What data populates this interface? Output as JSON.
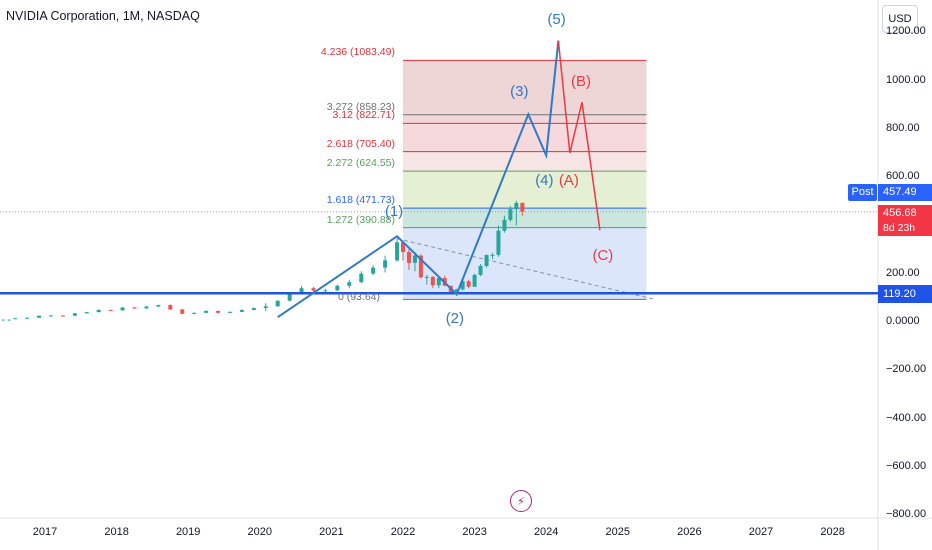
{
  "header": {
    "title": "NVIDIA Corporation, 1M, NASDAQ",
    "currency": "USD"
  },
  "colors": {
    "up": "#26a69a",
    "down": "#ef5350",
    "blue_line": "#1e53e5",
    "wave_blue": "#3179c7",
    "wave_red": "#f23645",
    "fib_red": "#e2303a",
    "fib_grey": "#707070",
    "fib_green": "#5a9e5e",
    "fib_blue": "#2962ff"
  },
  "chart_data": {
    "type": "candlestick",
    "symbol": "NVDA",
    "interval": "1M",
    "ylim": [
      -800,
      1200
    ],
    "y_ticks": [
      "1200.00",
      "1000.00",
      "800.00",
      "600.00",
      "200.00",
      "0.0000",
      "−200.00",
      "−400.00",
      "−600.00",
      "−800.00"
    ],
    "x_ticks": [
      "2017",
      "2018",
      "2019",
      "2020",
      "2021",
      "2022",
      "2023",
      "2024",
      "2025",
      "2026",
      "2027",
      "2028"
    ],
    "candles": [
      {
        "t": 2016.583,
        "o": 15,
        "h": 16,
        "l": 14,
        "c": 15.5
      },
      {
        "t": 2016.75,
        "o": 15.5,
        "h": 18,
        "l": 15,
        "c": 17.5
      },
      {
        "t": 2016.917,
        "o": 17.5,
        "h": 26,
        "l": 17,
        "c": 26
      },
      {
        "t": 2017.083,
        "o": 26,
        "h": 29,
        "l": 24,
        "c": 27
      },
      {
        "t": 2017.25,
        "o": 27,
        "h": 28,
        "l": 24,
        "c": 26
      },
      {
        "t": 2017.417,
        "o": 26,
        "h": 37,
        "l": 25,
        "c": 36
      },
      {
        "t": 2017.583,
        "o": 36,
        "h": 42,
        "l": 35,
        "c": 41
      },
      {
        "t": 2017.75,
        "o": 41,
        "h": 52,
        "l": 40,
        "c": 50
      },
      {
        "t": 2017.917,
        "o": 50,
        "h": 51,
        "l": 46,
        "c": 48
      },
      {
        "t": 2018.083,
        "o": 48,
        "h": 62,
        "l": 47,
        "c": 60
      },
      {
        "t": 2018.25,
        "o": 60,
        "h": 63,
        "l": 55,
        "c": 56
      },
      {
        "t": 2018.417,
        "o": 56,
        "h": 67,
        "l": 55,
        "c": 64
      },
      {
        "t": 2018.583,
        "o": 64,
        "h": 72,
        "l": 62,
        "c": 70
      },
      {
        "t": 2018.75,
        "o": 70,
        "h": 73,
        "l": 50,
        "c": 52
      },
      {
        "t": 2018.917,
        "o": 52,
        "h": 54,
        "l": 32,
        "c": 34
      },
      {
        "t": 2019.083,
        "o": 34,
        "h": 40,
        "l": 32,
        "c": 38
      },
      {
        "t": 2019.25,
        "o": 38,
        "h": 48,
        "l": 37,
        "c": 46
      },
      {
        "t": 2019.417,
        "o": 46,
        "h": 47,
        "l": 35,
        "c": 38
      },
      {
        "t": 2019.583,
        "o": 38,
        "h": 44,
        "l": 37,
        "c": 42
      },
      {
        "t": 2019.75,
        "o": 42,
        "h": 52,
        "l": 41,
        "c": 50
      },
      {
        "t": 2019.917,
        "o": 50,
        "h": 60,
        "l": 49,
        "c": 58
      },
      {
        "t": 2020.083,
        "o": 58,
        "h": 78,
        "l": 45,
        "c": 65
      },
      {
        "t": 2020.25,
        "o": 65,
        "h": 90,
        "l": 63,
        "c": 88
      },
      {
        "t": 2020.417,
        "o": 88,
        "h": 120,
        "l": 86,
        "c": 115
      },
      {
        "t": 2020.583,
        "o": 115,
        "h": 150,
        "l": 113,
        "c": 140
      },
      {
        "t": 2020.75,
        "o": 140,
        "h": 145,
        "l": 125,
        "c": 130
      },
      {
        "t": 2020.917,
        "o": 130,
        "h": 137,
        "l": 125,
        "c": 131
      },
      {
        "t": 2021.083,
        "o": 131,
        "h": 155,
        "l": 128,
        "c": 150
      },
      {
        "t": 2021.25,
        "o": 150,
        "h": 175,
        "l": 140,
        "c": 165
      },
      {
        "t": 2021.417,
        "o": 165,
        "h": 210,
        "l": 160,
        "c": 200
      },
      {
        "t": 2021.583,
        "o": 200,
        "h": 235,
        "l": 195,
        "c": 225
      },
      {
        "t": 2021.75,
        "o": 225,
        "h": 275,
        "l": 205,
        "c": 255
      },
      {
        "t": 2021.917,
        "o": 255,
        "h": 346,
        "l": 250,
        "c": 330
      },
      {
        "t": 2022.0,
        "o": 330,
        "h": 335,
        "l": 255,
        "c": 290
      },
      {
        "t": 2022.083,
        "o": 290,
        "h": 300,
        "l": 215,
        "c": 245
      },
      {
        "t": 2022.167,
        "o": 245,
        "h": 290,
        "l": 210,
        "c": 275
      },
      {
        "t": 2022.25,
        "o": 275,
        "h": 280,
        "l": 180,
        "c": 185
      },
      {
        "t": 2022.333,
        "o": 185,
        "h": 195,
        "l": 155,
        "c": 187
      },
      {
        "t": 2022.417,
        "o": 187,
        "h": 190,
        "l": 140,
        "c": 152
      },
      {
        "t": 2022.5,
        "o": 152,
        "h": 185,
        "l": 140,
        "c": 182
      },
      {
        "t": 2022.583,
        "o": 182,
        "h": 192,
        "l": 148,
        "c": 150
      },
      {
        "t": 2022.667,
        "o": 150,
        "h": 150,
        "l": 120,
        "c": 121
      },
      {
        "t": 2022.75,
        "o": 121,
        "h": 138,
        "l": 108,
        "c": 135
      },
      {
        "t": 2022.833,
        "o": 135,
        "h": 175,
        "l": 130,
        "c": 169
      },
      {
        "t": 2022.917,
        "o": 169,
        "h": 175,
        "l": 140,
        "c": 146
      },
      {
        "t": 2023.0,
        "o": 146,
        "h": 200,
        "l": 145,
        "c": 195
      },
      {
        "t": 2023.083,
        "o": 195,
        "h": 240,
        "l": 190,
        "c": 232
      },
      {
        "t": 2023.167,
        "o": 232,
        "h": 280,
        "l": 225,
        "c": 277
      },
      {
        "t": 2023.25,
        "o": 277,
        "h": 285,
        "l": 260,
        "c": 278
      },
      {
        "t": 2023.333,
        "o": 278,
        "h": 400,
        "l": 270,
        "c": 378
      },
      {
        "t": 2023.417,
        "o": 378,
        "h": 440,
        "l": 370,
        "c": 423
      },
      {
        "t": 2023.5,
        "o": 423,
        "h": 480,
        "l": 415,
        "c": 467
      },
      {
        "t": 2023.583,
        "o": 467,
        "h": 502,
        "l": 400,
        "c": 493
      },
      {
        "t": 2023.667,
        "o": 493,
        "h": 495,
        "l": 440,
        "c": 456.68
      }
    ],
    "fib_levels": [
      {
        "label": "4.236 (1083.49)",
        "value": 1083.49,
        "color": "red"
      },
      {
        "label": "3.272 (858.23)",
        "value": 858.23,
        "color": "grey"
      },
      {
        "label": "3.12 (822.71)",
        "value": 822.71,
        "color": "red"
      },
      {
        "label": "2.618 (705.40)",
        "value": 705.4,
        "color": "red"
      },
      {
        "label": "2.272 (624.55)",
        "value": 624.55,
        "color": "green"
      },
      {
        "label": "1.618 (471.73)",
        "value": 471.73,
        "color": "blue"
      },
      {
        "label": "1.272 (390.88)",
        "value": 390.88,
        "color": "green"
      },
      {
        "label": "0 (93.64)",
        "value": 93.64,
        "color": "grey"
      }
    ],
    "fib_range_x": [
      2022.0,
      2025.4
    ],
    "elliott_main": [
      {
        "t": 2020.25,
        "v": 20
      },
      {
        "t": 2021.917,
        "v": 355
      },
      {
        "t": 2022.75,
        "v": 115
      },
      {
        "t": 2023.75,
        "v": 860
      },
      {
        "t": 2024.0,
        "v": 690
      },
      {
        "t": 2024.17,
        "v": 1165
      }
    ],
    "elliott_correction": [
      {
        "t": 2024.17,
        "v": 1165
      },
      {
        "t": 2024.33,
        "v": 700
      },
      {
        "t": 2024.5,
        "v": 910
      },
      {
        "t": 2024.75,
        "v": 380
      }
    ],
    "diagonal_dashed": [
      {
        "t": 2021.917,
        "v": 345
      },
      {
        "t": 2025.5,
        "v": 95
      }
    ],
    "horizontal_line": {
      "value": 119.2,
      "label": "119.20"
    },
    "wave_labels": [
      {
        "text": "(5)",
        "t": 2024.17,
        "v": 1245,
        "color": "blue"
      },
      {
        "text": "(3)",
        "t": 2023.65,
        "v": 950,
        "color": "blue"
      },
      {
        "text": "(4)",
        "t": 2024.0,
        "v": 580,
        "color": "blue"
      },
      {
        "text": "(1)",
        "t": 2021.9,
        "v": 450,
        "color": "blue"
      },
      {
        "text": "(2)",
        "t": 2022.75,
        "v": 10,
        "color": "blue"
      },
      {
        "text": "(B)",
        "t": 2024.5,
        "v": 990,
        "color": "red"
      },
      {
        "text": "(A)",
        "t": 2024.33,
        "v": 580,
        "color": "red"
      },
      {
        "text": "(C)",
        "t": 2024.8,
        "v": 270,
        "color": "red"
      }
    ],
    "price_labels": {
      "post_tag": "Post",
      "post_price": "457.49",
      "last_price": "456.68",
      "countdown": "8d 23h",
      "line_level": "119.20"
    }
  }
}
